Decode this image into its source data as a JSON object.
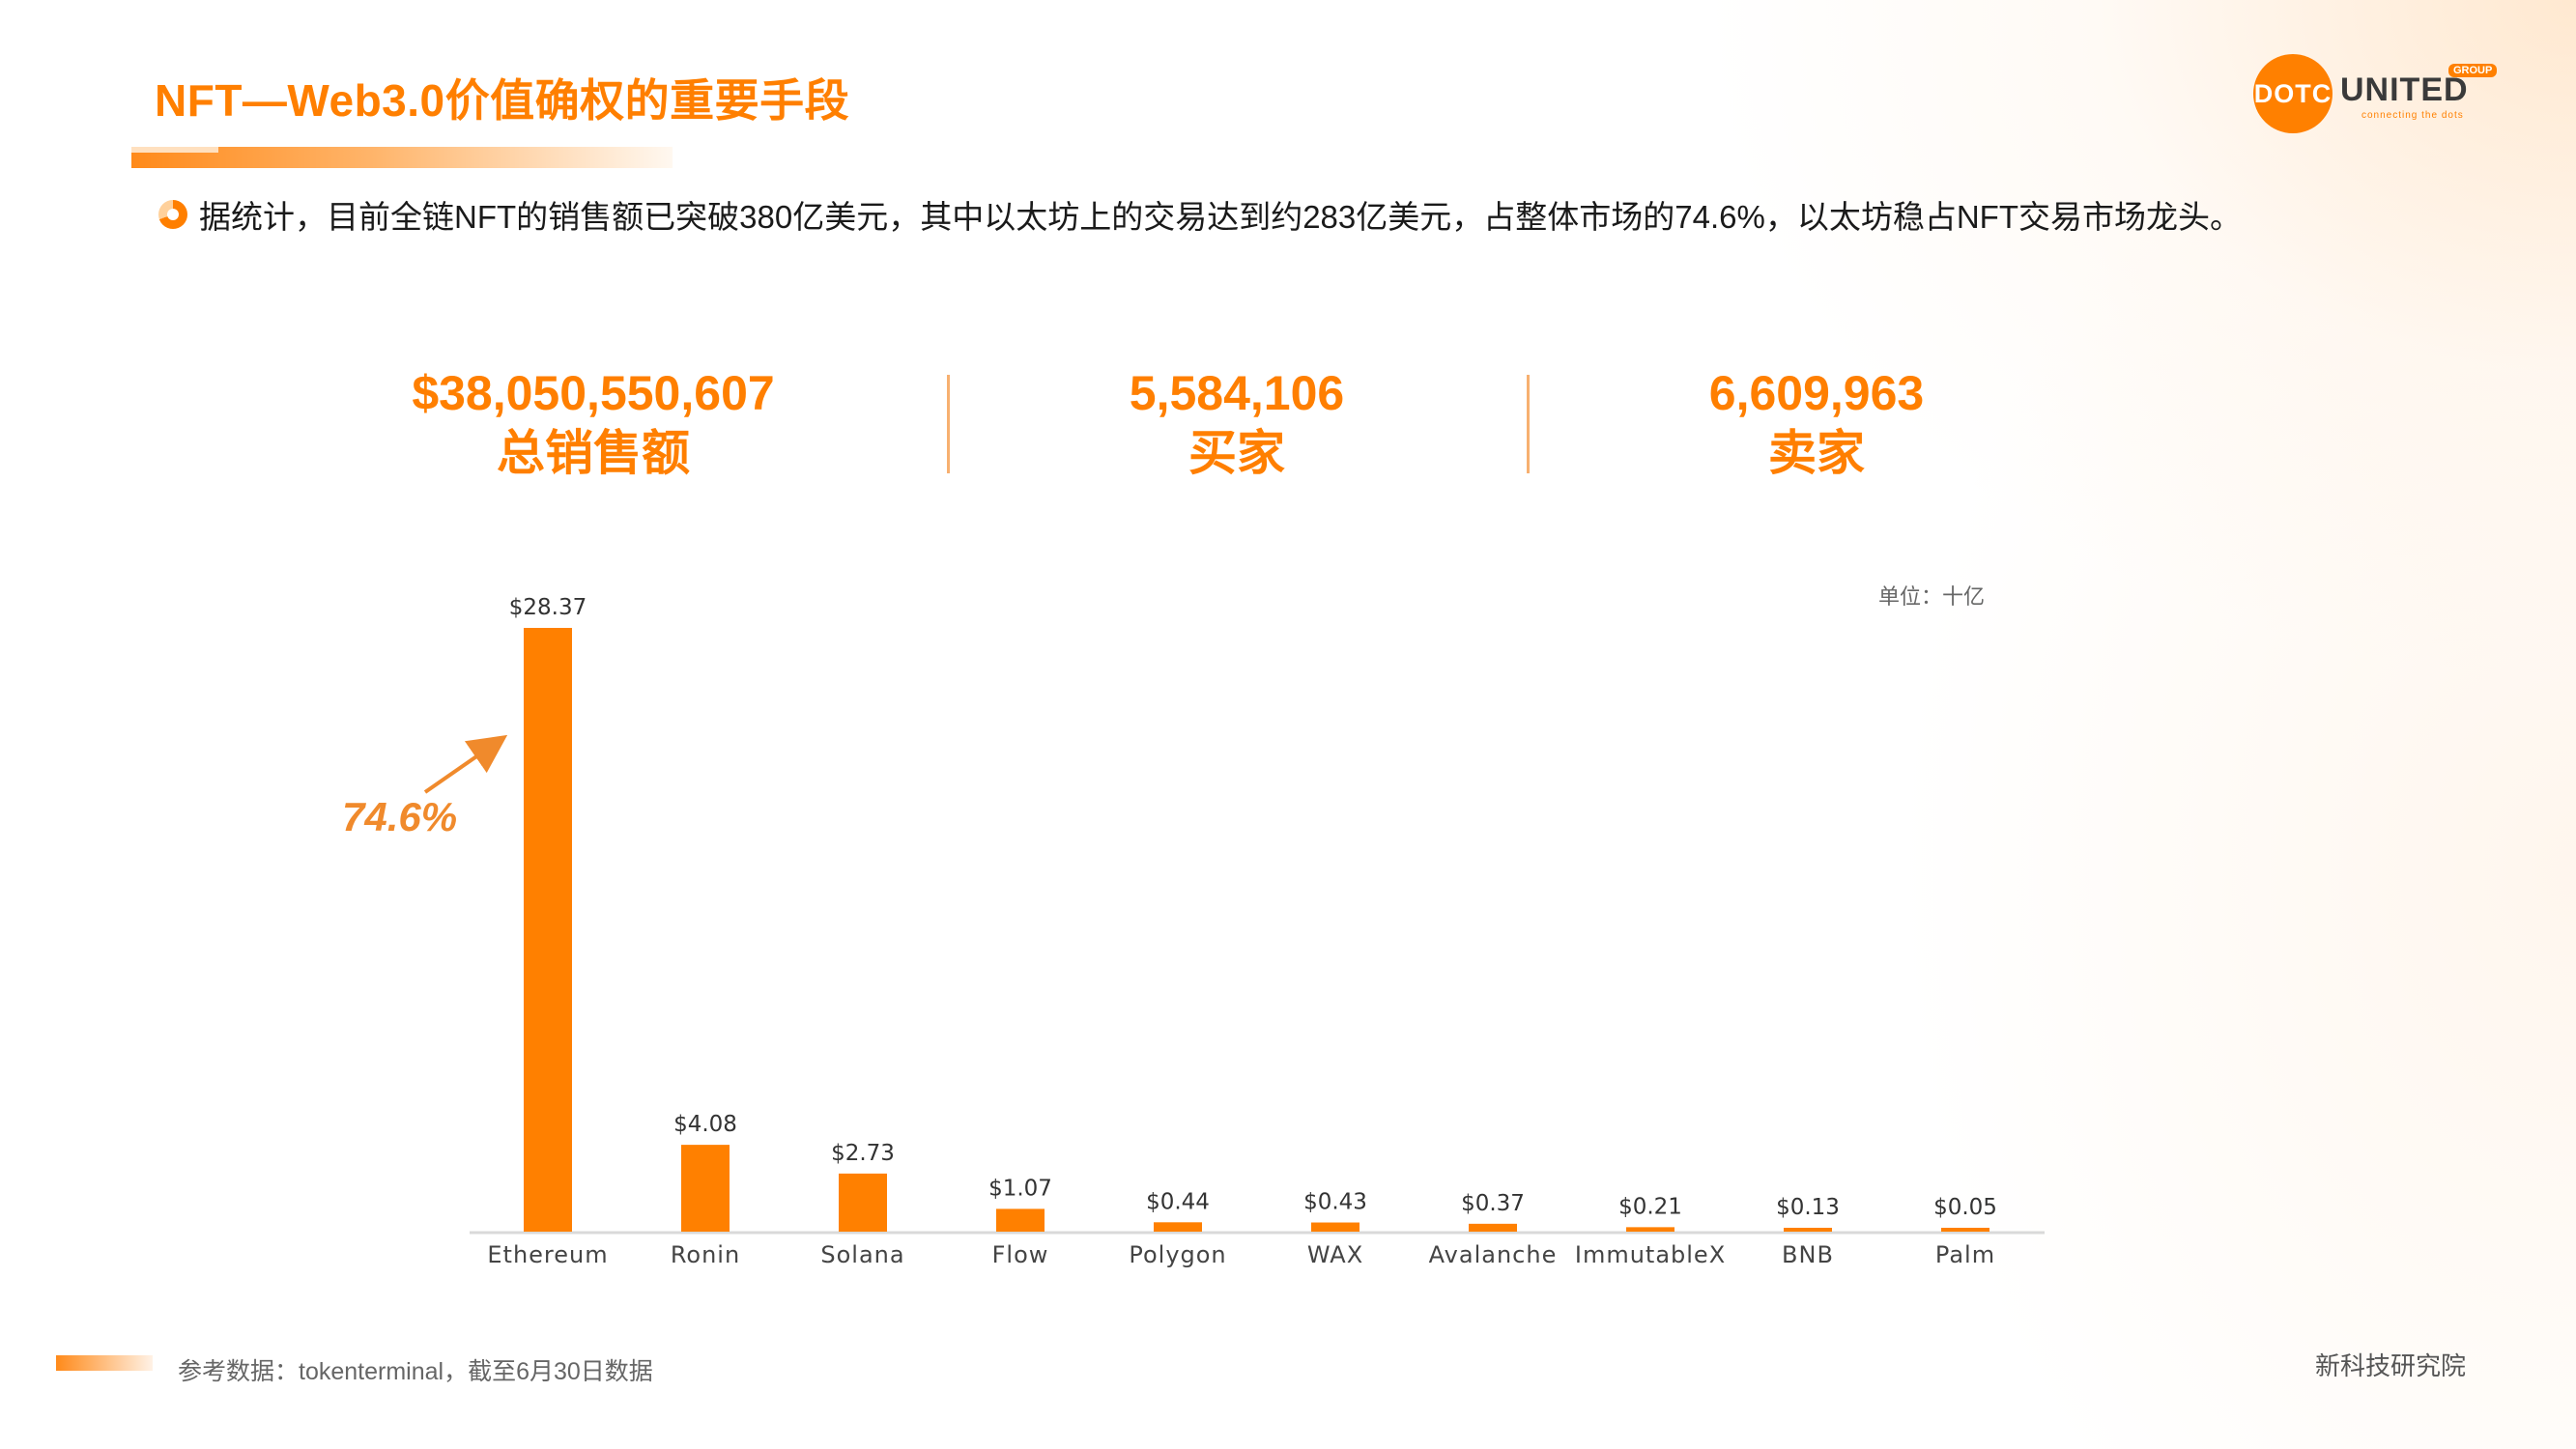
{
  "header": {
    "title": "NFT—Web3.0价值确权的重要手段",
    "logo": {
      "mark": "DOTC",
      "name": "UNITED",
      "badge": "GROUP",
      "tagline": "connecting the dots"
    }
  },
  "intro": "据统计，目前全链NFT的销售额已突破380亿美元，其中以太坊上的交易达到约283亿美元，占整体市场的74.6%，以太坊稳占NFT交易市场龙头。",
  "stats": [
    {
      "value": "$38,050,550,607",
      "label": "总销售额"
    },
    {
      "value": "5,584,106",
      "label": "买家"
    },
    {
      "value": "6,609,963",
      "label": "卖家"
    }
  ],
  "chart_data": {
    "type": "bar",
    "title": "",
    "xlabel": "",
    "ylabel": "",
    "unit": "单位：十亿",
    "categories": [
      "Ethereum",
      "Ronin",
      "Solana",
      "Flow",
      "Polygon",
      "WAX",
      "Avalanche",
      "ImmutableX",
      "BNB",
      "Palm"
    ],
    "values": [
      28.37,
      4.08,
      2.73,
      1.07,
      0.44,
      0.43,
      0.37,
      0.21,
      0.13,
      0.05
    ],
    "data_labels": [
      "$28.37",
      "$4.08",
      "$2.73",
      "$1.07",
      "$0.44",
      "$0.43",
      "$0.37",
      "$0.21",
      "$0.13",
      "$0.05"
    ],
    "annotation": "74.6%",
    "bar_color": "#ff8000",
    "ylim": [
      0,
      28.37
    ],
    "grid": false
  },
  "footer": {
    "source": "参考数据：tokenterminal，截至6月30日数据",
    "credit": "新科技研究院"
  }
}
